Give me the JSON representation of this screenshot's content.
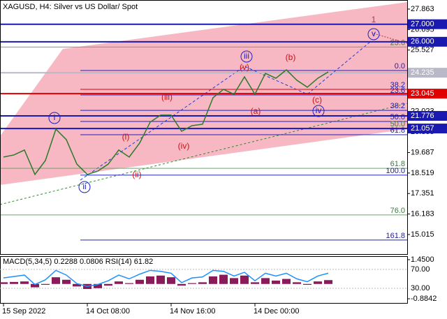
{
  "chart_data": {
    "type": "line",
    "title": "XAGUSD, H4:  Silver vs US Dollar/ Spot",
    "categories": [
      "15 Sep 2022",
      null,
      null,
      null,
      null,
      null,
      null,
      null,
      "14 Oct 08:00",
      null,
      null,
      null,
      null,
      null,
      null,
      null,
      "14 Nov 16:00",
      null,
      null,
      null,
      null,
      null,
      null,
      null,
      "14 Dec 00:00",
      null,
      null,
      null,
      null,
      null,
      null,
      null
    ],
    "values": [
      19.43,
      19.55,
      19.83,
      18.44,
      19.23,
      21.02,
      20.42,
      19.03,
      18.44,
      18.63,
      19.03,
      19.83,
      19.43,
      20.23,
      21.42,
      21.82,
      21.82,
      20.9,
      21.22,
      21.3,
      22.81,
      23.29,
      23.01,
      24.0,
      23.01,
      24.2,
      23.92,
      24.4,
      23.81,
      23.41,
      23.92,
      24.28
    ],
    "color": "#2a7a2a",
    "ylim": [
      13.86,
      28.38
    ],
    "yticks": [
      27.863,
      26.695,
      25.527,
      22.023,
      20.855,
      19.687,
      18.519,
      17.351,
      16.183,
      15.015
    ],
    "levels": [
      {
        "value": 27.0,
        "label": "27.000",
        "color": "#1a1ab0"
      },
      {
        "value": 26.0,
        "label": "26.000",
        "color": "#1a1ab0"
      },
      {
        "value": 24.235,
        "label": "24.235",
        "color": "#b8b8c8"
      },
      {
        "value": 23.045,
        "label": "23.045",
        "color": "#e00000"
      },
      {
        "value": 21.776,
        "label": "21.776",
        "color": "#1a1ab0"
      },
      {
        "value": 21.057,
        "label": "21.057",
        "color": "#1a1ab0"
      }
    ],
    "fib_levels": [
      {
        "value": 25.7,
        "label": "23.6",
        "color": "#66aa66"
      },
      {
        "value": 24.36,
        "label": "0.0",
        "color": "#2020c0"
      },
      {
        "value": 23.29,
        "label": "38.2",
        "color": "#e00000"
      },
      {
        "value": 22.97,
        "label": "23.6",
        "color": "#2020c0"
      },
      {
        "value": 22.09,
        "label": "38.2",
        "color": "#2020c0"
      },
      {
        "value": 21.46,
        "label": "50.0",
        "color": "#2020c0"
      },
      {
        "value": 21.06,
        "label": "50.0",
        "color": "#66aa66"
      },
      {
        "value": 20.7,
        "label": "61.8",
        "color": "#2020c0"
      },
      {
        "value": 18.79,
        "label": "61.8",
        "color": "#66aa66"
      },
      {
        "value": 18.4,
        "label": "100.0",
        "color": "#2020c0"
      },
      {
        "value": 16.13,
        "label": "76.0",
        "color": "#66aa66"
      },
      {
        "value": 14.7,
        "label": "161.8",
        "color": "#2020c0"
      }
    ],
    "wave_labels": [
      "i",
      "ii",
      "iii",
      "iv",
      "v",
      "(i)",
      "(ii)",
      "(iii)",
      "(iv)",
      "(v)",
      "(a)",
      "(b)",
      "(c)",
      "1"
    ],
    "indicator": {
      "label": "MACD(5,34,5) 0.2288 0.0806 RSI(14) 61.82",
      "ylim": [
        -0.8842,
        1.45
      ],
      "yticks": [
        {
          "value": 1.45,
          "label": "1.4500"
        },
        {
          "value": -0.8842,
          "label": "-0.8842"
        }
      ],
      "macd_values": [
        0.1,
        0.12,
        0.15,
        -0.2,
        -0.05,
        0.4,
        0.25,
        -0.15,
        -0.3,
        -0.25,
        -0.1,
        0.15,
        0.05,
        0.25,
        0.45,
        0.5,
        0.4,
        -0.1,
        0.05,
        0.1,
        0.45,
        0.55,
        0.35,
        0.5,
        0.1,
        0.35,
        0.2,
        0.3,
        0.1,
        -0.05,
        0.15,
        0.23
      ],
      "rsi_ylim": [
        30,
        70
      ],
      "rsi_ticks": [
        {
          "value": 70,
          "label": "70.00"
        },
        {
          "value": 30,
          "label": "30.00"
        }
      ],
      "rsi_values": [
        52,
        55,
        58,
        38,
        48,
        68,
        58,
        40,
        34,
        38,
        46,
        58,
        50,
        60,
        68,
        66,
        62,
        42,
        52,
        54,
        68,
        66,
        56,
        64,
        46,
        62,
        56,
        62,
        50,
        44,
        56,
        62
      ],
      "rsi_color": "#1e90ff",
      "macd_color": "#8b1a5a"
    }
  }
}
